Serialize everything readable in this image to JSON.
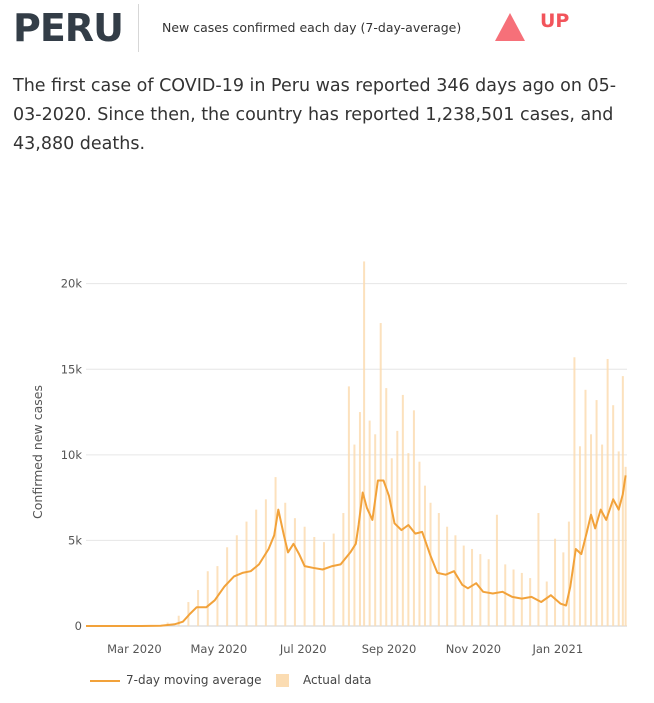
{
  "header": {
    "country": "PERU",
    "subtitle": "New cases confirmed each day (7-day-average)",
    "trend_label": "UP",
    "trend_color": "#f2545b"
  },
  "summary": "The first case of COVID-19 in Peru was reported 346 days ago on 05-03-2020. Since then, the country has reported 1,238,501 cases, and 43,880 deaths.",
  "legend": {
    "line_label": "7-day moving average",
    "bar_label": "Actual data"
  },
  "colors": {
    "line": "#f2a23a",
    "bars": "#fbdcb2",
    "grid": "#e6e6e6",
    "axis_text": "#555555"
  },
  "chart_data": {
    "type": "line",
    "title": "",
    "xlabel": "",
    "ylabel": "Confirmed new cases",
    "ylim": [
      0,
      21500
    ],
    "y_ticks": [
      0,
      5000,
      10000,
      15000,
      20000
    ],
    "y_tick_labels": [
      "0",
      "5k",
      "10k",
      "15k",
      "20k"
    ],
    "x_range": [
      "2020-01-26",
      "2021-02-20"
    ],
    "x_ticks": [
      "2020-03-01",
      "2020-05-01",
      "2020-07-01",
      "2020-09-01",
      "2020-11-01",
      "2021-01-01"
    ],
    "x_tick_labels": [
      "Mar 2020",
      "May 2020",
      "Jul 2020",
      "Sep 2020",
      "Nov 2020",
      "Jan 2021"
    ],
    "grid": "horizontal",
    "legend_position": "bottom-left",
    "series": [
      {
        "name": "7-day moving average",
        "style": "line",
        "points": [
          [
            "2020-01-26",
            0
          ],
          [
            "2020-03-06",
            0
          ],
          [
            "2020-03-20",
            20
          ],
          [
            "2020-03-30",
            100
          ],
          [
            "2020-04-05",
            250
          ],
          [
            "2020-04-10",
            700
          ],
          [
            "2020-04-15",
            1100
          ],
          [
            "2020-04-22",
            1100
          ],
          [
            "2020-04-28",
            1500
          ],
          [
            "2020-05-05",
            2300
          ],
          [
            "2020-05-12",
            2900
          ],
          [
            "2020-05-18",
            3100
          ],
          [
            "2020-05-24",
            3200
          ],
          [
            "2020-05-30",
            3600
          ],
          [
            "2020-06-06",
            4500
          ],
          [
            "2020-06-10",
            5300
          ],
          [
            "2020-06-13",
            6800
          ],
          [
            "2020-06-17",
            5300
          ],
          [
            "2020-06-20",
            4300
          ],
          [
            "2020-06-24",
            4800
          ],
          [
            "2020-06-28",
            4200
          ],
          [
            "2020-07-02",
            3500
          ],
          [
            "2020-07-08",
            3400
          ],
          [
            "2020-07-15",
            3300
          ],
          [
            "2020-07-22",
            3500
          ],
          [
            "2020-07-28",
            3600
          ],
          [
            "2020-08-04",
            4300
          ],
          [
            "2020-08-08",
            4800
          ],
          [
            "2020-08-10",
            5900
          ],
          [
            "2020-08-13",
            7800
          ],
          [
            "2020-08-16",
            6900
          ],
          [
            "2020-08-20",
            6200
          ],
          [
            "2020-08-24",
            8500
          ],
          [
            "2020-08-28",
            8500
          ],
          [
            "2020-09-01",
            7600
          ],
          [
            "2020-09-05",
            6000
          ],
          [
            "2020-09-10",
            5600
          ],
          [
            "2020-09-15",
            5900
          ],
          [
            "2020-09-20",
            5400
          ],
          [
            "2020-09-25",
            5500
          ],
          [
            "2020-10-01",
            4100
          ],
          [
            "2020-10-06",
            3100
          ],
          [
            "2020-10-12",
            3000
          ],
          [
            "2020-10-18",
            3200
          ],
          [
            "2020-10-24",
            2400
          ],
          [
            "2020-10-28",
            2200
          ],
          [
            "2020-11-03",
            2500
          ],
          [
            "2020-11-08",
            2000
          ],
          [
            "2020-11-15",
            1900
          ],
          [
            "2020-11-22",
            2000
          ],
          [
            "2020-11-29",
            1700
          ],
          [
            "2020-12-06",
            1600
          ],
          [
            "2020-12-13",
            1700
          ],
          [
            "2020-12-20",
            1400
          ],
          [
            "2020-12-27",
            1800
          ],
          [
            "2021-01-03",
            1300
          ],
          [
            "2021-01-07",
            1200
          ],
          [
            "2021-01-10",
            2300
          ],
          [
            "2021-01-14",
            4500
          ],
          [
            "2021-01-18",
            4200
          ],
          [
            "2021-01-22",
            5500
          ],
          [
            "2021-01-25",
            6500
          ],
          [
            "2021-01-28",
            5700
          ],
          [
            "2021-02-01",
            6800
          ],
          [
            "2021-02-05",
            6200
          ],
          [
            "2021-02-10",
            7400
          ],
          [
            "2021-02-14",
            6800
          ],
          [
            "2021-02-17",
            7700
          ],
          [
            "2021-02-19",
            8800
          ]
        ]
      },
      {
        "name": "Actual data",
        "style": "bars",
        "points": [
          [
            "2020-03-25",
            200
          ],
          [
            "2020-04-02",
            600
          ],
          [
            "2020-04-09",
            1400
          ],
          [
            "2020-04-16",
            2100
          ],
          [
            "2020-04-23",
            3200
          ],
          [
            "2020-04-30",
            3500
          ],
          [
            "2020-05-07",
            4600
          ],
          [
            "2020-05-14",
            5300
          ],
          [
            "2020-05-21",
            6100
          ],
          [
            "2020-05-28",
            6800
          ],
          [
            "2020-06-04",
            7400
          ],
          [
            "2020-06-11",
            8700
          ],
          [
            "2020-06-18",
            7200
          ],
          [
            "2020-06-25",
            6300
          ],
          [
            "2020-07-02",
            5800
          ],
          [
            "2020-07-09",
            5200
          ],
          [
            "2020-07-16",
            4900
          ],
          [
            "2020-07-23",
            5400
          ],
          [
            "2020-07-30",
            6600
          ],
          [
            "2020-08-03",
            14000
          ],
          [
            "2020-08-07",
            10600
          ],
          [
            "2020-08-11",
            12500
          ],
          [
            "2020-08-14",
            21300
          ],
          [
            "2020-08-18",
            12000
          ],
          [
            "2020-08-22",
            11200
          ],
          [
            "2020-08-26",
            17700
          ],
          [
            "2020-08-30",
            13900
          ],
          [
            "2020-09-03",
            9800
          ],
          [
            "2020-09-07",
            11400
          ],
          [
            "2020-09-11",
            13500
          ],
          [
            "2020-09-15",
            10100
          ],
          [
            "2020-09-19",
            12600
          ],
          [
            "2020-09-23",
            9600
          ],
          [
            "2020-09-27",
            8200
          ],
          [
            "2020-10-01",
            7200
          ],
          [
            "2020-10-07",
            6600
          ],
          [
            "2020-10-13",
            5800
          ],
          [
            "2020-10-19",
            5300
          ],
          [
            "2020-10-25",
            4700
          ],
          [
            "2020-10-31",
            4500
          ],
          [
            "2020-11-06",
            4200
          ],
          [
            "2020-11-12",
            3900
          ],
          [
            "2020-11-18",
            6500
          ],
          [
            "2020-11-24",
            3600
          ],
          [
            "2020-11-30",
            3300
          ],
          [
            "2020-12-06",
            3100
          ],
          [
            "2020-12-12",
            2800
          ],
          [
            "2020-12-18",
            6600
          ],
          [
            "2020-12-24",
            2600
          ],
          [
            "2020-12-30",
            5100
          ],
          [
            "2021-01-05",
            4300
          ],
          [
            "2021-01-09",
            6100
          ],
          [
            "2021-01-13",
            15700
          ],
          [
            "2021-01-17",
            10500
          ],
          [
            "2021-01-21",
            13800
          ],
          [
            "2021-01-25",
            11200
          ],
          [
            "2021-01-29",
            13200
          ],
          [
            "2021-02-02",
            10600
          ],
          [
            "2021-02-06",
            15600
          ],
          [
            "2021-02-10",
            12900
          ],
          [
            "2021-02-14",
            10200
          ],
          [
            "2021-02-17",
            14600
          ],
          [
            "2021-02-19",
            9300
          ]
        ]
      }
    ]
  }
}
